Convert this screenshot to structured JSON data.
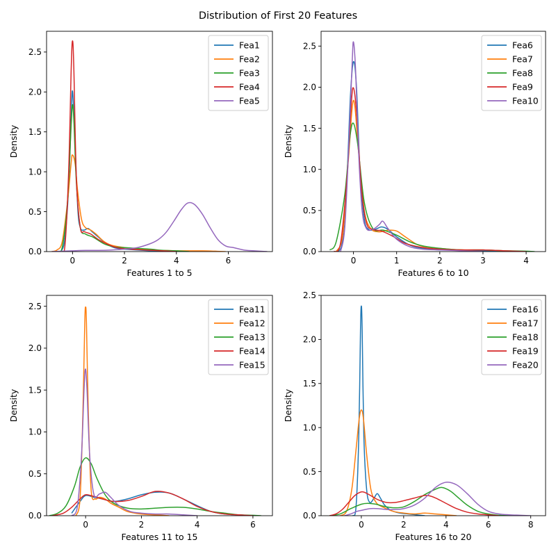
{
  "figure_title": "Distribution of First 20 Features",
  "colors": [
    "#1f77b4",
    "#ff7f0e",
    "#2ca02c",
    "#d62728",
    "#9467bd"
  ],
  "chart_data": [
    {
      "type": "line",
      "xlabel": "Features 1 to 5",
      "ylabel": "Density",
      "xlim": [
        -1.0,
        7.7
      ],
      "ylim": [
        0,
        2.76
      ],
      "xticks": [
        0,
        2,
        4,
        6
      ],
      "yticks": [
        0.0,
        0.5,
        1.0,
        1.5,
        2.0,
        2.5
      ],
      "legend": "top-right",
      "series": [
        {
          "name": "Fea1",
          "x": [
            -0.45,
            -0.3,
            -0.15,
            -0.05,
            0.0,
            0.08,
            0.2,
            0.3,
            0.45,
            0.6,
            0.75,
            1.0,
            1.3,
            1.6,
            2.0,
            2.5,
            3.0,
            3.5
          ],
          "y": [
            0.0,
            0.15,
            0.8,
            1.7,
            2.01,
            1.5,
            0.55,
            0.3,
            0.27,
            0.29,
            0.25,
            0.18,
            0.1,
            0.05,
            0.03,
            0.02,
            0.01,
            0.0
          ]
        },
        {
          "name": "Fea2",
          "x": [
            -0.8,
            -0.6,
            -0.4,
            -0.2,
            -0.05,
            0.0,
            0.1,
            0.2,
            0.35,
            0.5,
            0.7,
            0.9,
            1.2,
            1.5,
            2.0,
            2.5,
            3.0,
            3.5,
            4.0,
            4.5,
            5.0,
            5.5,
            5.9
          ],
          "y": [
            0.0,
            0.02,
            0.12,
            0.6,
            1.12,
            1.21,
            1.1,
            0.75,
            0.4,
            0.3,
            0.27,
            0.22,
            0.13,
            0.08,
            0.05,
            0.03,
            0.02,
            0.015,
            0.01,
            0.01,
            0.01,
            0.005,
            0.0
          ]
        },
        {
          "name": "Fea3",
          "x": [
            -0.6,
            -0.4,
            -0.2,
            -0.05,
            0.0,
            0.05,
            0.15,
            0.3,
            0.5,
            0.8,
            1.2,
            1.6,
            2.0,
            2.5,
            3.0,
            3.5,
            4.0,
            4.5
          ],
          "y": [
            0.0,
            0.05,
            0.6,
            1.6,
            1.84,
            1.65,
            0.85,
            0.3,
            0.22,
            0.18,
            0.1,
            0.06,
            0.05,
            0.04,
            0.03,
            0.015,
            0.01,
            0.0
          ]
        },
        {
          "name": "Fea4",
          "x": [
            -0.5,
            -0.3,
            -0.15,
            -0.05,
            0.0,
            0.05,
            0.15,
            0.3,
            0.45,
            0.7,
            1.0,
            1.3,
            1.7,
            2.2,
            2.8,
            3.5,
            4.0
          ],
          "y": [
            0.0,
            0.05,
            1.0,
            2.3,
            2.64,
            2.3,
            0.9,
            0.3,
            0.25,
            0.22,
            0.15,
            0.1,
            0.05,
            0.03,
            0.02,
            0.01,
            0.0
          ]
        },
        {
          "name": "Fea5",
          "x": [
            -0.8,
            -0.4,
            0.0,
            0.5,
            1.0,
            1.5,
            2.0,
            2.5,
            3.0,
            3.3,
            3.6,
            3.9,
            4.2,
            4.45,
            4.7,
            5.0,
            5.3,
            5.6,
            5.9,
            6.2,
            6.6,
            7.0,
            7.5
          ],
          "y": [
            0.0,
            0.005,
            0.01,
            0.015,
            0.015,
            0.02,
            0.03,
            0.05,
            0.1,
            0.15,
            0.24,
            0.38,
            0.53,
            0.61,
            0.59,
            0.47,
            0.3,
            0.15,
            0.07,
            0.05,
            0.02,
            0.01,
            0.0
          ]
        }
      ]
    },
    {
      "type": "line",
      "xlabel": "Features 6 to 10",
      "ylabel": "Density",
      "xlim": [
        -0.75,
        4.45
      ],
      "ylim": [
        0,
        2.68
      ],
      "xticks": [
        0,
        1,
        2,
        3,
        4
      ],
      "yticks": [
        0.0,
        0.5,
        1.0,
        1.5,
        2.0,
        2.5
      ],
      "legend": "top-right",
      "series": [
        {
          "name": "Fea6",
          "x": [
            -0.35,
            -0.25,
            -0.15,
            -0.07,
            0.0,
            0.07,
            0.15,
            0.25,
            0.35,
            0.5,
            0.65,
            0.8,
            1.0,
            1.3,
            1.6,
            2.0,
            2.5,
            3.0,
            3.5
          ],
          "y": [
            0.0,
            0.15,
            0.9,
            1.9,
            2.31,
            2.0,
            1.0,
            0.4,
            0.27,
            0.27,
            0.3,
            0.27,
            0.18,
            0.08,
            0.04,
            0.02,
            0.02,
            0.01,
            0.0
          ]
        },
        {
          "name": "Fea7",
          "x": [
            -0.4,
            -0.25,
            -0.12,
            0.0,
            0.12,
            0.25,
            0.4,
            0.6,
            0.8,
            1.0,
            1.2,
            1.5,
            1.8,
            2.2,
            2.6,
            3.0,
            3.5,
            4.0
          ],
          "y": [
            0.0,
            0.2,
            1.1,
            1.84,
            1.2,
            0.5,
            0.28,
            0.24,
            0.26,
            0.25,
            0.18,
            0.08,
            0.05,
            0.03,
            0.02,
            0.02,
            0.01,
            0.0
          ]
        },
        {
          "name": "Fea8",
          "x": [
            -0.55,
            -0.4,
            -0.2,
            -0.08,
            0.0,
            0.1,
            0.25,
            0.45,
            0.7,
            1.0,
            1.3,
            1.6,
            2.0,
            2.5,
            3.0,
            3.5,
            4.0,
            4.2
          ],
          "y": [
            0.02,
            0.12,
            0.7,
            1.4,
            1.56,
            1.3,
            0.6,
            0.28,
            0.26,
            0.2,
            0.12,
            0.07,
            0.04,
            0.02,
            0.02,
            0.01,
            0.005,
            0.0
          ]
        },
        {
          "name": "Fea9",
          "x": [
            -0.45,
            -0.3,
            -0.15,
            -0.05,
            0.0,
            0.07,
            0.18,
            0.3,
            0.45,
            0.65,
            0.9,
            1.2,
            1.6,
            2.0,
            2.5,
            3.0,
            3.5,
            4.0
          ],
          "y": [
            0.0,
            0.1,
            0.9,
            1.8,
            1.99,
            1.7,
            0.8,
            0.35,
            0.27,
            0.25,
            0.19,
            0.1,
            0.05,
            0.03,
            0.02,
            0.02,
            0.01,
            0.0
          ]
        },
        {
          "name": "Fea10",
          "x": [
            -0.3,
            -0.2,
            -0.1,
            -0.03,
            0.0,
            0.05,
            0.12,
            0.2,
            0.3,
            0.45,
            0.6,
            0.68,
            0.8,
            1.0,
            1.3,
            1.6,
            2.0,
            2.5,
            3.0
          ],
          "y": [
            0.0,
            0.3,
            1.4,
            2.3,
            2.55,
            2.2,
            1.2,
            0.5,
            0.28,
            0.27,
            0.33,
            0.37,
            0.28,
            0.15,
            0.06,
            0.03,
            0.02,
            0.01,
            0.0
          ]
        }
      ]
    },
    {
      "type": "line",
      "xlabel": "Features 11 to 15",
      "ylabel": "Density",
      "xlim": [
        -1.4,
        6.7
      ],
      "ylim": [
        0,
        2.63
      ],
      "xticks": [
        0,
        2,
        4,
        6
      ],
      "yticks": [
        0.0,
        0.5,
        1.0,
        1.5,
        2.0,
        2.5
      ],
      "legend": "top-right",
      "series": [
        {
          "name": "Fea11",
          "x": [
            -0.5,
            -0.2,
            0.0,
            0.3,
            0.6,
            1.0,
            1.5,
            2.0,
            2.5,
            3.0,
            3.5,
            4.0,
            4.5,
            5.0,
            5.5,
            6.0
          ],
          "y": [
            0.03,
            0.17,
            0.24,
            0.22,
            0.2,
            0.17,
            0.2,
            0.25,
            0.28,
            0.27,
            0.2,
            0.12,
            0.05,
            0.02,
            0.01,
            0.0
          ]
        },
        {
          "name": "Fea12",
          "x": [
            -0.35,
            -0.2,
            -0.1,
            -0.03,
            0.0,
            0.03,
            0.1,
            0.2,
            0.35,
            0.5,
            0.7,
            0.9,
            1.2,
            1.5,
            2.0,
            2.5,
            3.0
          ],
          "y": [
            0.0,
            0.2,
            1.2,
            2.3,
            2.49,
            2.3,
            1.2,
            0.3,
            0.2,
            0.22,
            0.2,
            0.15,
            0.1,
            0.05,
            0.02,
            0.01,
            0.0
          ]
        },
        {
          "name": "Fea13",
          "x": [
            -1.3,
            -1.0,
            -0.7,
            -0.4,
            -0.2,
            0.0,
            0.2,
            0.4,
            0.7,
            1.0,
            1.5,
            2.0,
            2.5,
            3.0,
            3.5,
            4.0,
            4.5,
            5.0,
            5.5,
            6.0,
            6.3
          ],
          "y": [
            0.0,
            0.03,
            0.12,
            0.35,
            0.58,
            0.69,
            0.62,
            0.45,
            0.25,
            0.15,
            0.09,
            0.08,
            0.09,
            0.1,
            0.1,
            0.08,
            0.05,
            0.03,
            0.01,
            0.005,
            0.0
          ]
        },
        {
          "name": "Fea14",
          "x": [
            -1.2,
            -0.8,
            -0.5,
            -0.2,
            0.0,
            0.3,
            0.6,
            1.0,
            1.5,
            2.0,
            2.5,
            3.0,
            3.5,
            4.0,
            4.5,
            5.0,
            5.5,
            6.0
          ],
          "y": [
            0.0,
            0.03,
            0.1,
            0.2,
            0.25,
            0.23,
            0.2,
            0.17,
            0.18,
            0.23,
            0.29,
            0.27,
            0.2,
            0.11,
            0.05,
            0.02,
            0.01,
            0.0
          ]
        },
        {
          "name": "Fea15",
          "x": [
            -0.5,
            -0.3,
            -0.15,
            -0.05,
            0.0,
            0.05,
            0.15,
            0.3,
            0.5,
            0.7,
            0.9,
            1.2,
            1.6,
            2.0,
            2.5,
            3.0,
            3.5,
            4.0
          ],
          "y": [
            0.0,
            0.1,
            0.7,
            1.55,
            1.75,
            1.5,
            0.7,
            0.25,
            0.26,
            0.28,
            0.22,
            0.12,
            0.05,
            0.03,
            0.02,
            0.02,
            0.01,
            0.0
          ]
        }
      ]
    },
    {
      "type": "line",
      "xlabel": "Features 16 to 20",
      "ylabel": "Density",
      "xlim": [
        -1.9,
        8.7
      ],
      "ylim": [
        0,
        2.5
      ],
      "xticks": [
        0,
        2,
        4,
        6,
        8
      ],
      "yticks": [
        0.0,
        0.5,
        1.0,
        1.5,
        2.0,
        2.5
      ],
      "legend": "top-right",
      "series": [
        {
          "name": "Fea16",
          "x": [
            -0.4,
            -0.25,
            -0.12,
            -0.04,
            0.0,
            0.04,
            0.12,
            0.25,
            0.4,
            0.6,
            0.75,
            0.9,
            1.1,
            1.4,
            1.8,
            2.2,
            2.6,
            3.0
          ],
          "y": [
            0.0,
            0.1,
            0.9,
            2.1,
            2.38,
            2.1,
            0.9,
            0.3,
            0.15,
            0.2,
            0.25,
            0.2,
            0.12,
            0.06,
            0.03,
            0.02,
            0.01,
            0.0
          ]
        },
        {
          "name": "Fea17",
          "x": [
            -1.0,
            -0.7,
            -0.45,
            -0.25,
            -0.1,
            0.0,
            0.1,
            0.25,
            0.45,
            0.7,
            1.0,
            1.5,
            2.0,
            2.5,
            3.0,
            3.5,
            4.0,
            4.5
          ],
          "y": [
            0.0,
            0.05,
            0.3,
            0.75,
            1.1,
            1.2,
            1.1,
            0.7,
            0.3,
            0.15,
            0.1,
            0.05,
            0.03,
            0.02,
            0.03,
            0.02,
            0.01,
            0.0
          ]
        },
        {
          "name": "Fea18",
          "x": [
            -1.5,
            -1.0,
            -0.5,
            0.0,
            0.3,
            0.7,
            1.0,
            1.5,
            2.0,
            2.5,
            3.0,
            3.5,
            3.8,
            4.2,
            4.6,
            5.0,
            5.5,
            6.0,
            6.5,
            7.0
          ],
          "y": [
            0.0,
            0.02,
            0.08,
            0.13,
            0.14,
            0.13,
            0.11,
            0.09,
            0.1,
            0.16,
            0.24,
            0.3,
            0.32,
            0.28,
            0.2,
            0.12,
            0.05,
            0.02,
            0.005,
            0.0
          ]
        },
        {
          "name": "Fea19",
          "x": [
            -1.5,
            -1.2,
            -0.9,
            -0.6,
            -0.3,
            0.0,
            0.2,
            0.5,
            0.8,
            1.2,
            1.6,
            2.0,
            2.5,
            3.0,
            3.3,
            3.6,
            4.0,
            4.5,
            5.0,
            5.5,
            6.0,
            6.5
          ],
          "y": [
            0.0,
            0.02,
            0.07,
            0.15,
            0.23,
            0.27,
            0.26,
            0.22,
            0.18,
            0.15,
            0.15,
            0.17,
            0.2,
            0.23,
            0.22,
            0.19,
            0.14,
            0.08,
            0.04,
            0.02,
            0.01,
            0.0
          ]
        },
        {
          "name": "Fea20",
          "x": [
            -0.8,
            -0.5,
            -0.2,
            0.0,
            0.4,
            0.8,
            1.2,
            1.6,
            2.0,
            2.5,
            3.0,
            3.5,
            4.0,
            4.5,
            5.0,
            5.5,
            6.0,
            6.5,
            7.0,
            7.5,
            8.0
          ],
          "y": [
            0.0,
            0.02,
            0.05,
            0.06,
            0.08,
            0.08,
            0.07,
            0.07,
            0.08,
            0.12,
            0.2,
            0.32,
            0.38,
            0.35,
            0.25,
            0.13,
            0.05,
            0.02,
            0.01,
            0.005,
            0.0
          ]
        }
      ]
    }
  ]
}
